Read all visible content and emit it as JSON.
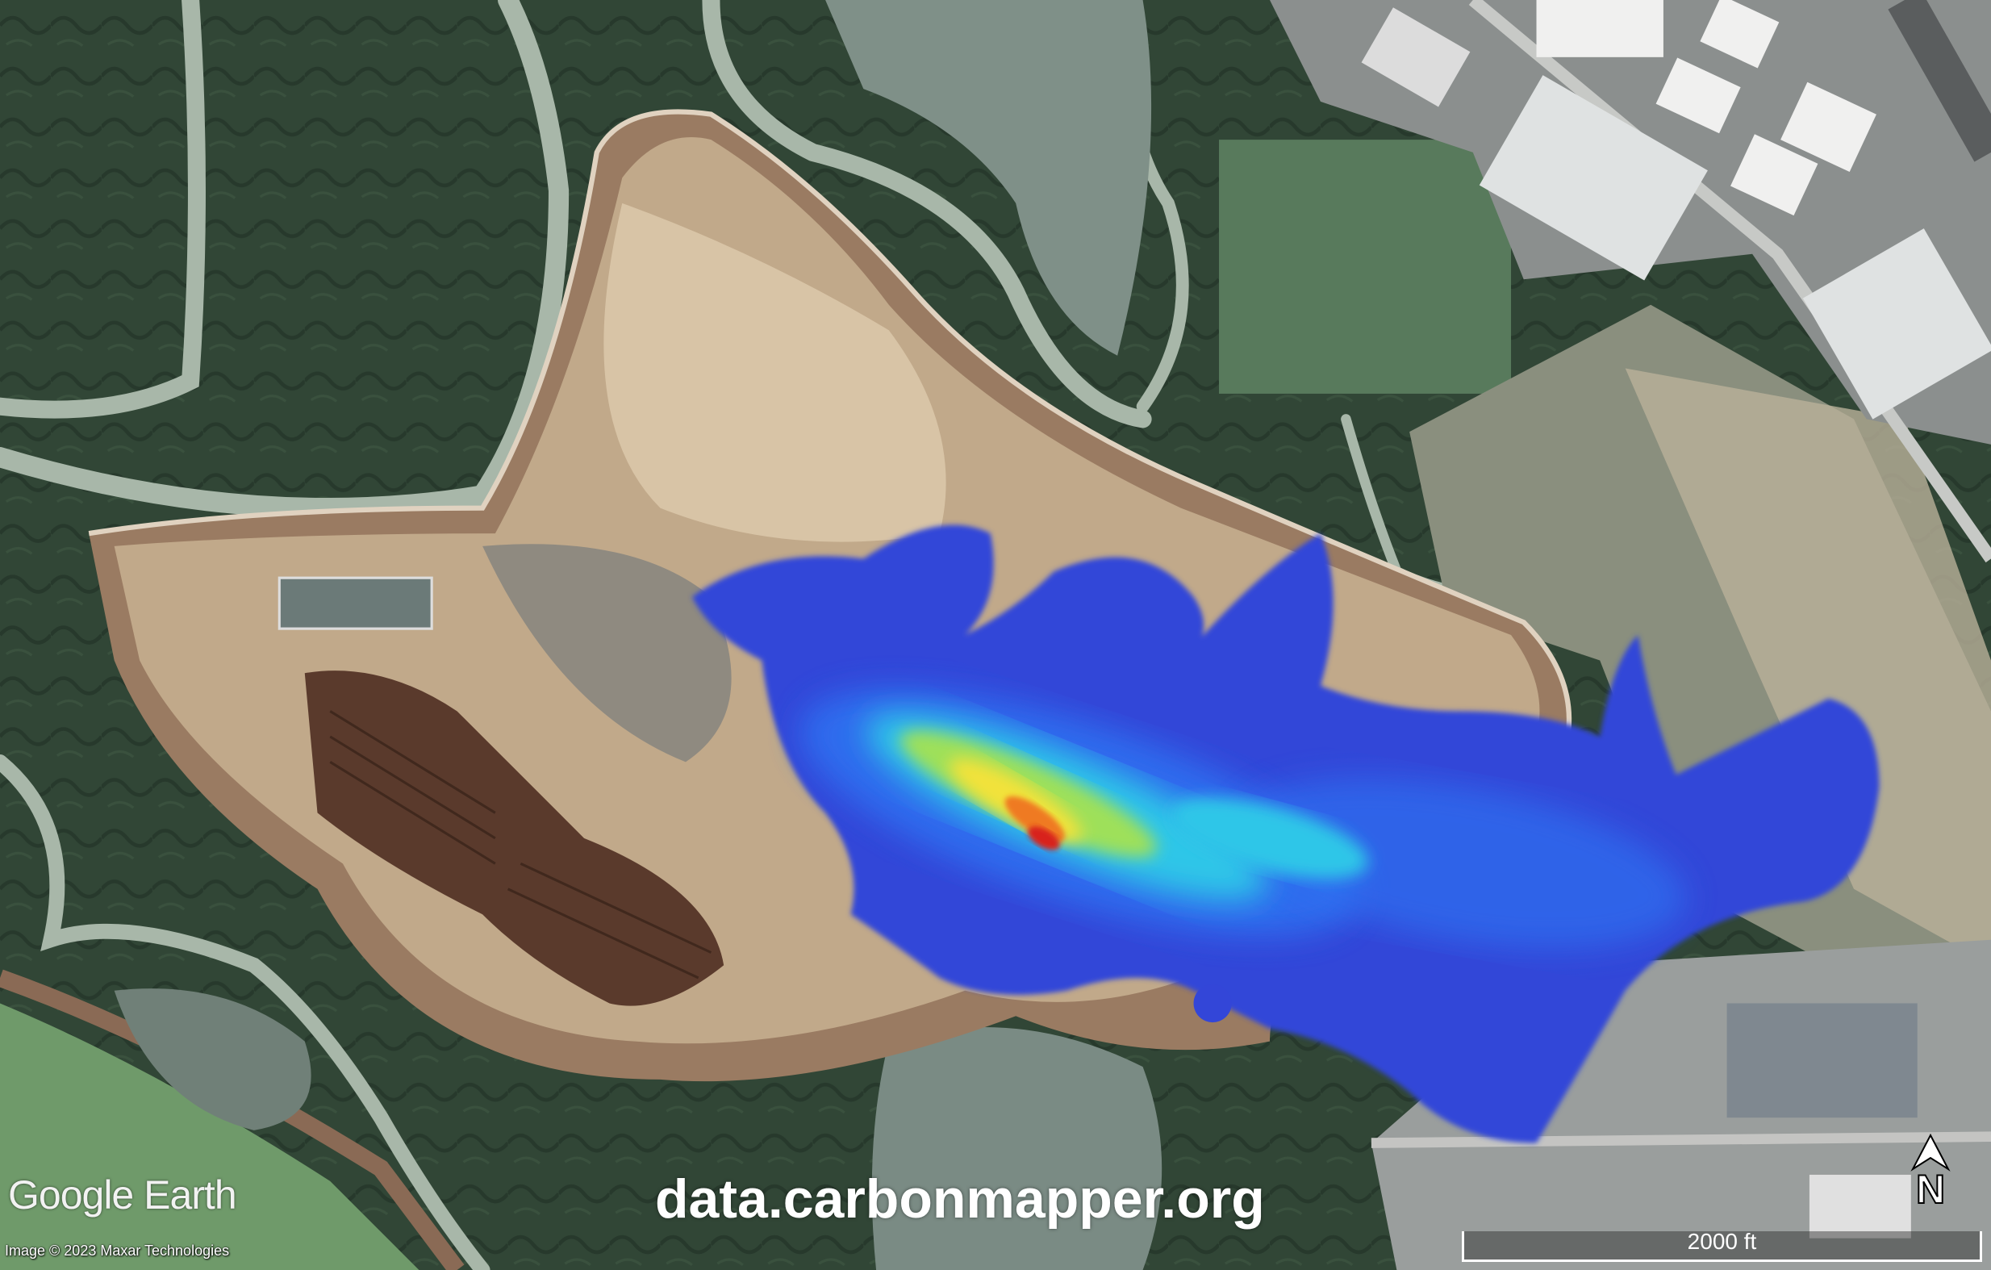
{
  "map": {
    "imagery": "satellite",
    "overlay": "methane plume (blue to red intensity)",
    "colors": {
      "plume_low": "#3346d8",
      "plume_mid": "#2ec6e8",
      "plume_high": "#f2e23a",
      "plume_peak": "#d8201a",
      "marsh": "#2f4632",
      "landfill": "#b89a78"
    }
  },
  "branding": {
    "logo": "Google Earth",
    "credit": "Image © 2023 Maxar Technologies",
    "watermark": "data.carbonmapper.org"
  },
  "scale_bar": {
    "label": "2000 ft"
  },
  "north_arrow": {
    "label": "N",
    "icon": "north-arrow-icon"
  }
}
